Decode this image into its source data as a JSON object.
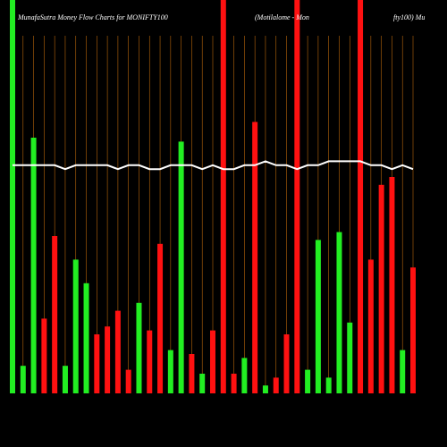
{
  "chart_data": {
    "type": "bar",
    "title": "MunafaSutra  Money Flow  Charts for MONIFTY100",
    "subtitle": "(Motilalome - Mon",
    "subtitle2": "fty100) Mu",
    "ylim": [
      0,
      100
    ],
    "up_color": "#22ee22",
    "down_color": "#ff1111",
    "grid_color": "#b8660b",
    "line_color": "#ffffff",
    "directions": [
      "up",
      "up",
      "up",
      "down",
      "down",
      "up",
      "up",
      "up",
      "down",
      "down",
      "down",
      "down",
      "up",
      "down",
      "down",
      "up",
      "up",
      "down",
      "up",
      "down",
      "down",
      "down",
      "up",
      "down",
      "up",
      "down",
      "down",
      "down",
      "up",
      "up",
      "up",
      "up",
      "up",
      "down",
      "down",
      "down",
      "down",
      "up",
      "down"
    ],
    "values": [
      100,
      7,
      65,
      19,
      40,
      7,
      34,
      28,
      15,
      17,
      21,
      6,
      23,
      16,
      38,
      11,
      64,
      10,
      5,
      16,
      100,
      5,
      9,
      69,
      2,
      4,
      15,
      100,
      6,
      39,
      4,
      41,
      18,
      100,
      34,
      53,
      55,
      11,
      32
    ],
    "line": [
      58,
      58,
      58,
      58,
      58,
      57,
      58,
      58,
      58,
      58,
      57,
      58,
      58,
      57,
      57,
      58,
      58,
      58,
      57,
      58,
      57,
      57,
      58,
      58,
      59,
      58,
      58,
      57,
      58,
      58,
      59,
      59,
      59,
      59,
      58,
      58,
      57,
      58,
      57
    ]
  }
}
